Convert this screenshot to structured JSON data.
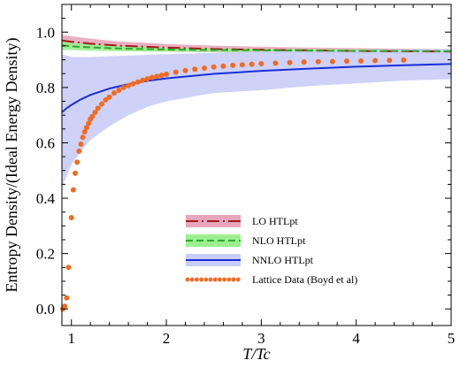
{
  "chart_data": {
    "type": "line",
    "xlabel": "T/Tc",
    "ylabel": "Entropy Density/(Ideal Energy Density)",
    "xlim": [
      0.9,
      5.0
    ],
    "ylim": [
      -0.06,
      1.1
    ],
    "xticks": [
      1,
      2,
      3,
      4,
      5
    ],
    "yticks": [
      0.0,
      0.2,
      0.4,
      0.6,
      0.8,
      1.0
    ],
    "ytick_labels": [
      "0.0",
      "0.2",
      "0.4",
      "0.6",
      "0.8",
      "1.0"
    ],
    "xtick_labels": [
      "1",
      "2",
      "3",
      "4",
      "5"
    ],
    "grid": false,
    "legend_position": "bottom-center",
    "series": [
      {
        "name": "LO HTLpt",
        "style": "dash-dot",
        "color": "#a31b1b",
        "band_color": "#e8a6bd",
        "x": [
          0.9,
          1.0,
          1.2,
          1.5,
          2.0,
          2.5,
          3.0,
          3.5,
          4.0,
          4.5,
          5.0
        ],
        "values": [
          0.97,
          0.965,
          0.958,
          0.951,
          0.944,
          0.939,
          0.936,
          0.934,
          0.932,
          0.931,
          0.93
        ],
        "band_lower": [
          0.945,
          0.942,
          0.938,
          0.934,
          0.93,
          0.927,
          0.925,
          0.924,
          0.923,
          0.922,
          0.922
        ],
        "band_upper": [
          0.99,
          0.985,
          0.976,
          0.966,
          0.957,
          0.951,
          0.947,
          0.944,
          0.942,
          0.94,
          0.939
        ]
      },
      {
        "name": "NLO HTLpt",
        "style": "dashed",
        "color": "#2fa82f",
        "band_color": "#9bef8f",
        "x": [
          0.9,
          1.0,
          1.2,
          1.5,
          2.0,
          2.5,
          3.0,
          3.5,
          4.0,
          4.5,
          5.0
        ],
        "values": [
          0.952,
          0.949,
          0.945,
          0.941,
          0.937,
          0.935,
          0.934,
          0.933,
          0.932,
          0.932,
          0.931
        ],
        "band_lower": [
          0.935,
          0.935,
          0.933,
          0.931,
          0.929,
          0.928,
          0.927,
          0.927,
          0.926,
          0.926,
          0.926
        ],
        "band_upper": [
          0.966,
          0.962,
          0.956,
          0.95,
          0.945,
          0.942,
          0.94,
          0.939,
          0.938,
          0.937,
          0.936
        ]
      },
      {
        "name": "NNLO HTLpt",
        "style": "solid",
        "color": "#1a2fd6",
        "band_color": "#c9cdf7",
        "x": [
          0.9,
          0.95,
          1.0,
          1.1,
          1.2,
          1.4,
          1.6,
          1.8,
          2.0,
          2.5,
          3.0,
          3.5,
          4.0,
          4.5,
          5.0
        ],
        "values": [
          0.71,
          0.725,
          0.737,
          0.757,
          0.773,
          0.796,
          0.812,
          0.824,
          0.833,
          0.849,
          0.86,
          0.868,
          0.875,
          0.88,
          0.885
        ],
        "band_lower": [
          0.44,
          0.48,
          0.52,
          0.57,
          0.61,
          0.66,
          0.7,
          0.73,
          0.75,
          0.78,
          0.79,
          0.805,
          0.815,
          0.825,
          0.83
        ],
        "band_upper": [
          0.92,
          0.915,
          0.91,
          0.91,
          0.91,
          0.913,
          0.915,
          0.918,
          0.92,
          0.925,
          0.93,
          0.933,
          0.935,
          0.937,
          0.94
        ]
      },
      {
        "name": "Lattice Data (Boyd et al)",
        "style": "dots",
        "color": "#f26b21",
        "x": [
          0.91,
          0.93,
          0.95,
          0.97,
          1.0,
          1.02,
          1.04,
          1.06,
          1.08,
          1.1,
          1.12,
          1.14,
          1.16,
          1.18,
          1.2,
          1.22,
          1.25,
          1.28,
          1.32,
          1.36,
          1.4,
          1.45,
          1.5,
          1.55,
          1.6,
          1.65,
          1.7,
          1.75,
          1.8,
          1.85,
          1.9,
          1.95,
          2.0,
          2.1,
          2.2,
          2.3,
          2.4,
          2.5,
          2.6,
          2.7,
          2.8,
          2.9,
          3.0,
          3.15,
          3.3,
          3.45,
          3.6,
          3.75,
          3.9,
          4.05,
          4.2,
          4.35,
          4.5
        ],
        "values": [
          0.0,
          0.01,
          0.04,
          0.15,
          0.33,
          0.43,
          0.49,
          0.53,
          0.57,
          0.595,
          0.62,
          0.64,
          0.655,
          0.67,
          0.685,
          0.695,
          0.71,
          0.725,
          0.74,
          0.755,
          0.765,
          0.78,
          0.79,
          0.8,
          0.807,
          0.813,
          0.82,
          0.826,
          0.831,
          0.836,
          0.84,
          0.844,
          0.848,
          0.855,
          0.861,
          0.866,
          0.87,
          0.874,
          0.877,
          0.88,
          0.882,
          0.884,
          0.886,
          0.888,
          0.89,
          0.892,
          0.893,
          0.894,
          0.895,
          0.896,
          0.897,
          0.898,
          0.899
        ]
      }
    ]
  }
}
